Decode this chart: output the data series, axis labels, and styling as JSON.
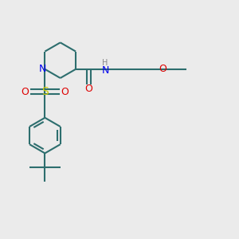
{
  "bg_color": "#ebebeb",
  "bond_color": "#2d6e6e",
  "N_color": "#0000ee",
  "O_color": "#dd0000",
  "S_color": "#cccc00",
  "H_color": "#888888",
  "line_width": 1.5,
  "font_size": 9,
  "fig_width": 3.0,
  "fig_height": 3.0,
  "dpi": 100,
  "xlim": [
    0,
    10
  ],
  "ylim": [
    0,
    10
  ]
}
